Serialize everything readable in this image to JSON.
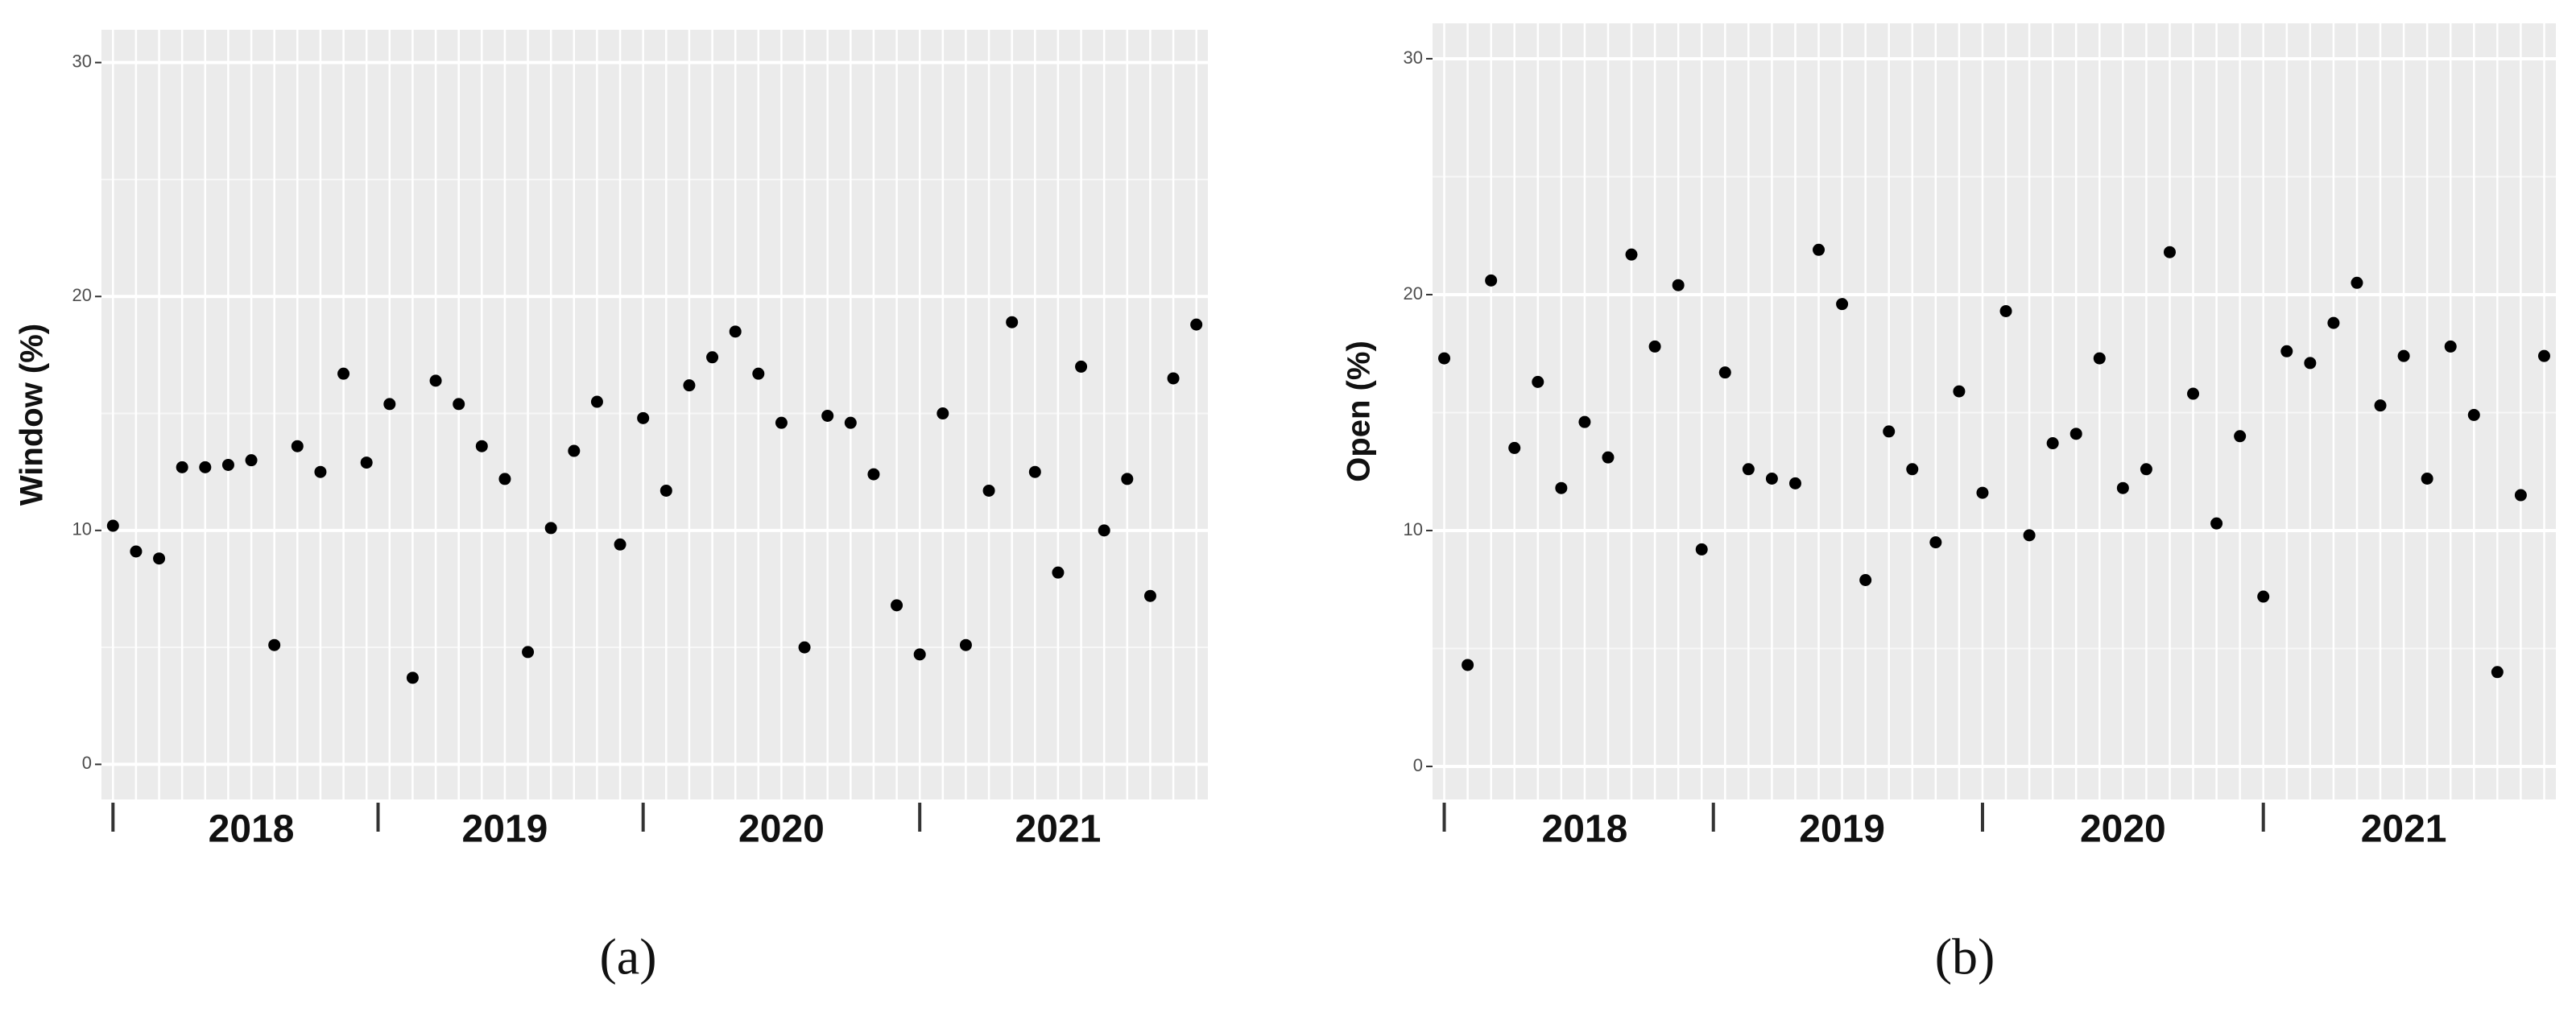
{
  "chart_data": [
    {
      "type": "scatter",
      "caption": "(a)",
      "ylabel": "Window (%)",
      "color": "#000000",
      "grid": true,
      "categories": [
        null,
        null,
        null,
        null,
        null,
        null,
        "2018",
        null,
        null,
        null,
        null,
        null,
        null,
        null,
        null,
        null,
        null,
        "2019",
        null,
        null,
        null,
        null,
        null,
        null,
        null,
        null,
        null,
        null,
        null,
        "2020",
        null,
        null,
        null,
        null,
        null,
        null,
        null,
        null,
        null,
        null,
        null,
        "2021",
        null,
        null,
        null,
        null,
        null,
        null
      ],
      "values": [
        10.2,
        9.1,
        8.8,
        12.7,
        12.7,
        12.8,
        13.0,
        5.1,
        13.6,
        12.5,
        16.7,
        12.9,
        15.4,
        3.7,
        16.4,
        15.4,
        13.6,
        12.2,
        4.8,
        10.1,
        13.4,
        15.5,
        9.4,
        14.8,
        11.7,
        16.2,
        17.4,
        18.5,
        16.7,
        14.6,
        5.0,
        14.9,
        14.6,
        12.4,
        6.8,
        4.7,
        15.0,
        5.1,
        11.7,
        18.9,
        12.5,
        8.2,
        17.0,
        10.0,
        12.2,
        7.2,
        16.5,
        18.8
      ],
      "ylim": [
        -1.5,
        31.4
      ],
      "yticks": [
        0,
        10,
        20,
        30
      ]
    },
    {
      "type": "scatter",
      "caption": "(b)",
      "ylabel": "Open (%)",
      "color": "#000000",
      "grid": true,
      "categories": [
        null,
        null,
        null,
        null,
        null,
        null,
        "2018",
        null,
        null,
        null,
        null,
        null,
        null,
        null,
        null,
        null,
        null,
        "2019",
        null,
        null,
        null,
        null,
        null,
        null,
        null,
        null,
        null,
        null,
        null,
        "2020",
        null,
        null,
        null,
        null,
        null,
        null,
        null,
        null,
        null,
        null,
        null,
        "2021",
        null,
        null,
        null,
        null,
        null,
        null
      ],
      "values": [
        17.3,
        4.3,
        20.6,
        13.5,
        16.3,
        11.8,
        14.6,
        13.1,
        21.7,
        17.8,
        20.4,
        9.2,
        16.7,
        12.6,
        12.2,
        12.0,
        21.9,
        19.6,
        7.9,
        14.2,
        12.6,
        9.5,
        15.9,
        11.6,
        19.3,
        9.8,
        13.7,
        14.1,
        17.3,
        11.8,
        12.6,
        21.8,
        15.8,
        10.3,
        14.0,
        7.2,
        17.6,
        17.1,
        18.8,
        20.5,
        15.3,
        17.4,
        12.2,
        17.8,
        14.9,
        4.0,
        11.5,
        17.4
      ],
      "ylim": [
        -1.4,
        31.5
      ],
      "yticks": [
        0,
        10,
        20,
        30
      ]
    }
  ]
}
